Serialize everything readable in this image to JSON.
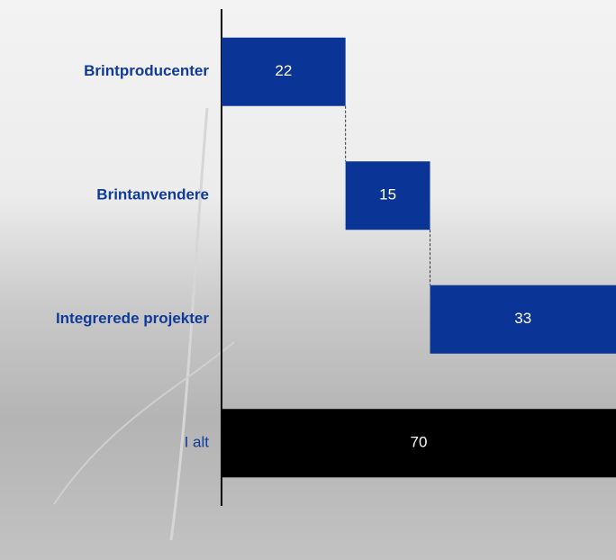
{
  "chart_data": {
    "type": "waterfall",
    "categories": [
      "Brintproducenter",
      "Brintanvendere",
      "Integrerede projekter",
      "I alt"
    ],
    "values": [
      22,
      15,
      33,
      70
    ],
    "colors": [
      "#0a3596",
      "#0a3596",
      "#0a3596",
      "#000000"
    ],
    "category_color": "#0f3a97",
    "last_is_total": true
  }
}
